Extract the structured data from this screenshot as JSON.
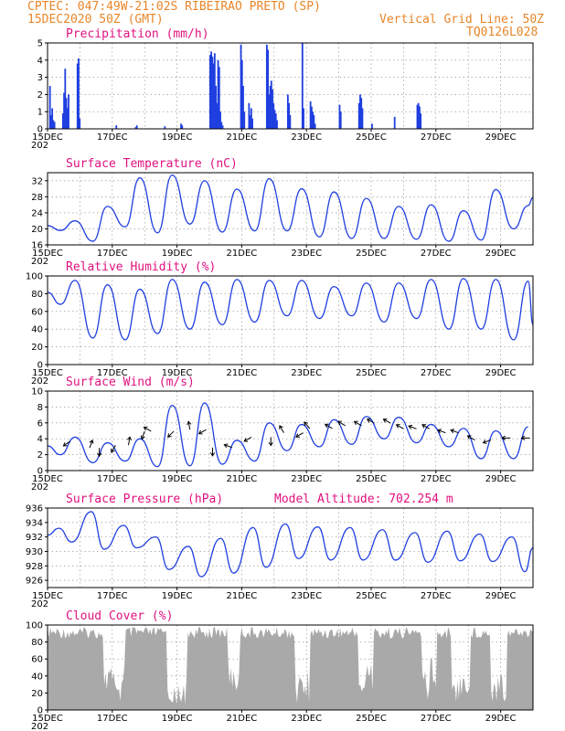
{
  "header": {
    "line1": "CPTEC:  047:49W-21:02S  RIBEIRAO PRETO (SP)",
    "line2_left": "15DEC2020 50Z (GMT)",
    "line2_right": "Vertical Grid Line: 50Z",
    "line3_right": "TQ0126L028"
  },
  "colors": {
    "header": "#e8862a",
    "title": "#e0117f",
    "line": "#1f3fe0",
    "bar": "#1f3fe0",
    "cloud": "#a9a9a9"
  },
  "x_axis": {
    "labels": [
      "15DEC",
      "17DEC",
      "19DEC",
      "21DEC",
      "23DEC",
      "25DEC",
      "27DEC",
      "29DEC"
    ],
    "extra": "202"
  },
  "chart_data": [
    {
      "type": "bar",
      "title": "Precipitation (mm/h)",
      "ylim": [
        0,
        5
      ],
      "yticks": [
        0,
        1,
        2,
        3,
        4,
        5
      ],
      "bursts": [
        {
          "day": 0.05,
          "values": [
            2.5,
            0.8,
            1.2,
            0.5,
            0.4
          ]
        },
        {
          "day": 0.45,
          "values": [
            0.9,
            2.1,
            3.5,
            1.8,
            1.2,
            2.0
          ]
        },
        {
          "day": 0.9,
          "values": [
            3.8,
            4.1,
            0.6
          ]
        },
        {
          "day": 2.1,
          "values": [
            0.2
          ]
        },
        {
          "day": 2.7,
          "values": [
            0.1,
            0.2
          ]
        },
        {
          "day": 3.6,
          "values": [
            0.15
          ]
        },
        {
          "day": 4.1,
          "values": [
            0.3,
            0.2
          ]
        },
        {
          "day": 5.0,
          "values": [
            4.3,
            4.5,
            4.2,
            3.8,
            4.4,
            2.5,
            1.5,
            4.0,
            3.6,
            1.0,
            0.4,
            0.2
          ]
        },
        {
          "day": 5.95,
          "values": [
            4.9,
            4.0,
            2.5,
            1.0
          ]
        },
        {
          "day": 6.2,
          "values": [
            1.5,
            0.8,
            1.2,
            0.6
          ]
        },
        {
          "day": 6.75,
          "values": [
            4.9,
            4.6,
            2.0,
            2.5,
            2.8,
            2.3,
            1.5,
            1.1,
            0.9,
            0.5
          ]
        },
        {
          "day": 7.4,
          "values": [
            2.0,
            1.5,
            0.8
          ]
        },
        {
          "day": 7.85,
          "values": [
            5.0,
            1.2
          ]
        },
        {
          "day": 8.1,
          "values": [
            1.6,
            1.3,
            1.0,
            0.8,
            0.3
          ]
        },
        {
          "day": 9.0,
          "values": [
            1.4,
            1.0
          ]
        },
        {
          "day": 9.6,
          "values": [
            1.5,
            2.0,
            1.8,
            1.2
          ]
        },
        {
          "day": 10.0,
          "values": [
            0.3
          ]
        },
        {
          "day": 10.7,
          "values": [
            0.7
          ]
        },
        {
          "day": 11.4,
          "values": [
            1.4,
            1.5,
            1.3,
            0.9
          ]
        }
      ]
    },
    {
      "type": "line",
      "title": "Surface Temperature (nC)",
      "ylim": [
        16,
        34
      ],
      "yticks": [
        16,
        20,
        24,
        28,
        32
      ],
      "daily_min": [
        19.6,
        16.9,
        20.5,
        19.0,
        21.2,
        19.2,
        19.5,
        19.5,
        18.0,
        17.6,
        17.6,
        17.4,
        16.9,
        17.2,
        20.0
      ],
      "daily_max": [
        22.0,
        25.6,
        32.7,
        33.4,
        32.0,
        29.9,
        32.5,
        30.0,
        29.2,
        27.6,
        25.6,
        26.0,
        24.5,
        29.8,
        25.8,
        31.7
      ],
      "end_value": 27.8
    },
    {
      "type": "line",
      "title": "Relative Humidity (%)",
      "ylim": [
        0,
        100
      ],
      "yticks": [
        0,
        20,
        40,
        60,
        80,
        100
      ],
      "daily_max": [
        95,
        90,
        85,
        96,
        93,
        96,
        95,
        95,
        88,
        92,
        92,
        96,
        97,
        96,
        94
      ],
      "daily_min": [
        68,
        30,
        28,
        35,
        40,
        45,
        48,
        55,
        52,
        55,
        48,
        52,
        40,
        40,
        28
      ],
      "end_value": 45
    },
    {
      "type": "line",
      "title": "Surface Wind (m/s)",
      "ylim": [
        0,
        10
      ],
      "yticks": [
        0,
        2,
        4,
        6,
        8,
        10
      ],
      "daily_min": [
        2.0,
        1.0,
        1.2,
        0.5,
        0.6,
        0.8,
        1.2,
        2.5,
        3.0,
        3.3,
        4.0,
        3.5,
        3.0,
        1.5,
        1.5
      ],
      "daily_max": [
        4.2,
        3.5,
        4.0,
        8.2,
        8.5,
        3.8,
        6.0,
        5.8,
        6.4,
        6.8,
        6.7,
        5.8,
        5.3,
        5.0,
        5.5
      ],
      "arrows": [
        {
          "day": 0.7,
          "dir": 235
        },
        {
          "day": 1.3,
          "dir": 20
        },
        {
          "day": 1.6,
          "dir": 180
        },
        {
          "day": 2.1,
          "dir": 210
        },
        {
          "day": 2.5,
          "dir": 10
        },
        {
          "day": 3.0,
          "dir": 200
        },
        {
          "day": 3.2,
          "dir": 300
        },
        {
          "day": 3.9,
          "dir": 225
        },
        {
          "day": 4.4,
          "dir": 350
        },
        {
          "day": 4.9,
          "dir": 240
        },
        {
          "day": 5.1,
          "dir": 180
        },
        {
          "day": 5.7,
          "dir": 290
        },
        {
          "day": 6.3,
          "dir": 240
        },
        {
          "day": 6.9,
          "dir": 180
        },
        {
          "day": 7.3,
          "dir": 330
        },
        {
          "day": 7.9,
          "dir": 240
        },
        {
          "day": 8.1,
          "dir": 320
        },
        {
          "day": 8.8,
          "dir": 300
        },
        {
          "day": 9.2,
          "dir": 300
        },
        {
          "day": 9.7,
          "dir": 300
        },
        {
          "day": 10.1,
          "dir": 300
        },
        {
          "day": 10.6,
          "dir": 300
        },
        {
          "day": 11.0,
          "dir": 300
        },
        {
          "day": 11.4,
          "dir": 290
        },
        {
          "day": 11.8,
          "dir": 300
        },
        {
          "day": 12.3,
          "dir": 290
        },
        {
          "day": 12.7,
          "dir": 290
        },
        {
          "day": 13.2,
          "dir": 300
        },
        {
          "day": 13.7,
          "dir": 250
        },
        {
          "day": 14.3,
          "dir": 270
        },
        {
          "day": 14.9,
          "dir": 270
        }
      ]
    },
    {
      "type": "line",
      "title": "Surface Pressure (hPa)",
      "subtitle": "Model Altitude: 702.254 m",
      "ylim": [
        925,
        936
      ],
      "yticks": [
        926,
        928,
        930,
        932,
        934,
        936
      ],
      "daily_high": [
        933.2,
        935.5,
        933.6,
        932.0,
        930.7,
        931.8,
        933.3,
        933.8,
        933.4,
        933.3,
        933.0,
        932.6,
        932.8,
        932.4,
        932.0,
        931.5
      ],
      "daily_low": [
        931.3,
        930.3,
        930.5,
        927.5,
        926.5,
        927.0,
        927.8,
        929.0,
        928.8,
        928.8,
        928.8,
        928.5,
        928.7,
        928.6,
        927.2
      ],
      "end_value": 930.5
    },
    {
      "type": "area",
      "title": "Cloud Cover (%)",
      "ylim": [
        0,
        100
      ],
      "yticks": [
        0,
        20,
        40,
        60,
        80,
        100
      ],
      "gaps": [
        {
          "start": 1.75,
          "end": 2.4,
          "depth": 45
        },
        {
          "start": 3.7,
          "end": 4.3,
          "depth": 30
        },
        {
          "start": 5.55,
          "end": 5.95,
          "depth": 50
        },
        {
          "start": 7.65,
          "end": 8.1,
          "depth": 40
        },
        {
          "start": 9.6,
          "end": 10.05,
          "depth": 45
        },
        {
          "start": 11.55,
          "end": 12.0,
          "depth": 55
        },
        {
          "start": 12.5,
          "end": 13.05,
          "depth": 35
        },
        {
          "start": 13.7,
          "end": 14.2,
          "depth": 40
        }
      ]
    }
  ]
}
